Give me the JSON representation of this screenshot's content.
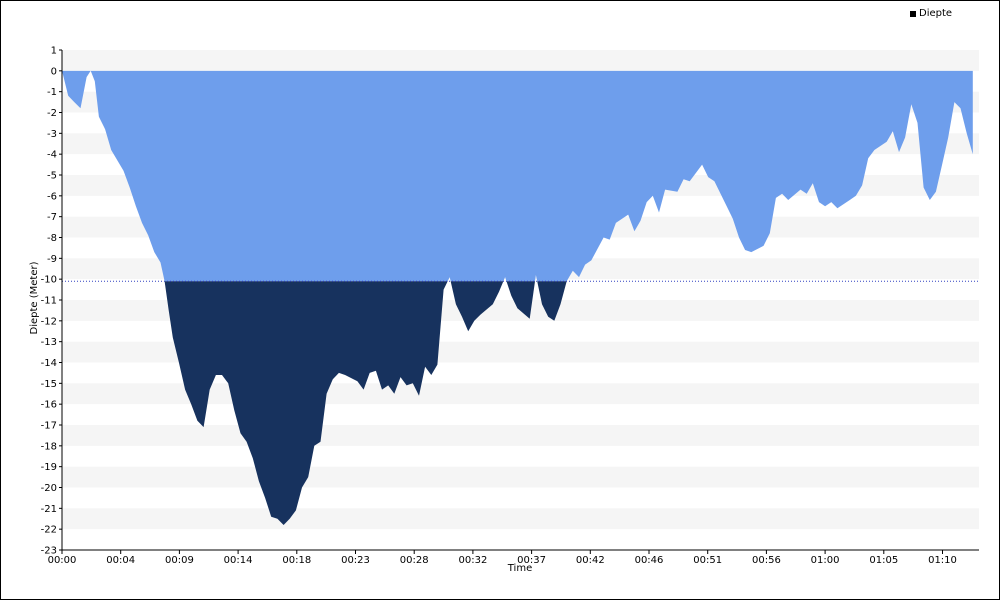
{
  "chart_data": {
    "type": "area",
    "xlabel": "Time",
    "ylabel": "Diepte (Meter)",
    "legend": {
      "label": "Diepte",
      "placement": "top-right"
    },
    "ylim": [
      -23,
      1
    ],
    "xlim_minutes": [
      0,
      74.5
    ],
    "y_ticks": [
      1,
      0,
      -1,
      -2,
      -3,
      -4,
      -5,
      -6,
      -7,
      -8,
      -9,
      -10,
      -11,
      -12,
      -13,
      -14,
      -15,
      -16,
      -17,
      -18,
      -19,
      -20,
      -21,
      -22,
      -23
    ],
    "x_ticks": [
      "00:00",
      "00:04",
      "00:09",
      "00:14",
      "00:18",
      "00:23",
      "00:28",
      "00:32",
      "00:37",
      "00:42",
      "00:46",
      "00:51",
      "00:56",
      "01:00",
      "01:05",
      "01:10"
    ],
    "threshold": -10.1,
    "colors": {
      "above_threshold": "#6e9eec",
      "below_threshold": "#17325e",
      "threshold_line": "#3040c0",
      "grid_band": "#f5f5f5"
    },
    "series": [
      {
        "name": "Diepte",
        "x": [
          "00:00",
          "00:00",
          "00:01",
          "00:01",
          "00:02",
          "00:02",
          "00:02",
          "00:03",
          "00:03",
          "00:04",
          "00:05",
          "00:05",
          "00:06",
          "00:06",
          "00:07",
          "00:07",
          "00:08",
          "00:08",
          "00:08",
          "00:09",
          "00:09",
          "00:10",
          "00:10",
          "00:11",
          "00:11",
          "00:12",
          "00:12",
          "00:13",
          "00:13",
          "00:14",
          "00:14",
          "00:15",
          "00:15",
          "00:16",
          "00:16",
          "00:17",
          "00:17",
          "00:18",
          "00:18",
          "00:19",
          "00:19",
          "00:20",
          "00:20",
          "00:21",
          "00:21",
          "00:22",
          "00:22",
          "00:23",
          "00:24",
          "00:24",
          "00:25",
          "00:25",
          "00:26",
          "00:26",
          "00:27",
          "00:27",
          "00:28",
          "00:28",
          "00:29",
          "00:29",
          "00:30",
          "00:30",
          "00:31",
          "00:31",
          "00:32",
          "00:32",
          "00:33",
          "00:33",
          "00:34",
          "00:35",
          "00:35",
          "00:36",
          "00:36",
          "00:37",
          "00:38",
          "00:38",
          "00:39",
          "00:39",
          "00:40",
          "00:40",
          "00:41",
          "00:41",
          "00:42",
          "00:42",
          "00:43",
          "00:44",
          "00:44",
          "00:45",
          "00:46",
          "00:46",
          "00:47",
          "00:47",
          "00:48",
          "00:48",
          "00:49",
          "00:50",
          "00:50",
          "00:51",
          "00:52",
          "00:52",
          "00:53",
          "00:54",
          "00:54",
          "00:55",
          "00:55",
          "00:56",
          "00:57",
          "00:57",
          "00:58",
          "00:58",
          "00:59",
          "01:00",
          "01:00",
          "01:01",
          "01:01",
          "01:02",
          "01:02",
          "01:03",
          "01:04",
          "01:04",
          "01:05",
          "01:05",
          "01:06",
          "01:07",
          "01:07",
          "01:08",
          "01:08",
          "01:09",
          "01:09",
          "01:10",
          "01:10",
          "01:11",
          "01:11",
          "01:12",
          "01:12",
          "01:13",
          "01:13",
          "01:14"
        ],
        "y": [
          0,
          -1.2,
          -1.5,
          -1.8,
          -0.3,
          0,
          -0.5,
          -2.2,
          -2.8,
          -3.8,
          -4.8,
          -5.6,
          -6.5,
          -7.3,
          -7.9,
          -8.7,
          -9.2,
          -10.1,
          -11.5,
          -12.8,
          -14,
          -15.3,
          -16,
          -16.8,
          -17.1,
          -15.3,
          -14.6,
          -14.6,
          -15,
          -16.3,
          -17.4,
          -17.8,
          -18.6,
          -19.7,
          -20.5,
          -21.4,
          -21.5,
          -21.8,
          -21.5,
          -21.1,
          -20,
          -19.5,
          -18,
          -17.8,
          -15.5,
          -14.8,
          -14.5,
          -14.6,
          -14.9,
          -15.3,
          -14.5,
          -14.4,
          -15.3,
          -15.1,
          -15.5,
          -14.7,
          -15.1,
          -15,
          -15.6,
          -14.2,
          -14.6,
          -14.1,
          -10.5,
          -9.9,
          -11.2,
          -11.8,
          -12.5,
          -12.0,
          -11.7,
          -11.2,
          -10.6,
          -9.9,
          -10.8,
          -11.4,
          -11.9,
          -9.8,
          -11.2,
          -11.8,
          -12.0,
          -11.2,
          -10.1,
          -9.6,
          -9.9,
          -9.3,
          -9.1,
          -8.0,
          -8.1,
          -7.3,
          -6.9,
          -7.7,
          -7.2,
          -6.3,
          -6.0,
          -6.8,
          -5.7,
          -5.8,
          -5.2,
          -5.3,
          -4.5,
          -5.1,
          -5.3,
          -6.5,
          -7.1,
          -8.0,
          -8.6,
          -8.7,
          -8.4,
          -7.8,
          -6.1,
          -5.9,
          -6.2,
          -5.7,
          -5.9,
          -5.4,
          -6.3,
          -6.5,
          -6.3,
          -6.6,
          -6.2,
          -6.0,
          -5.5,
          -4.2,
          -3.8,
          -3.4,
          -2.9,
          -3.9,
          -3.2,
          -1.6,
          -2.5,
          -5.6,
          -6.2,
          -5.8,
          -4.5,
          -3.2,
          -1.5,
          -1.8,
          -3.0,
          -4.0
        ]
      }
    ]
  }
}
